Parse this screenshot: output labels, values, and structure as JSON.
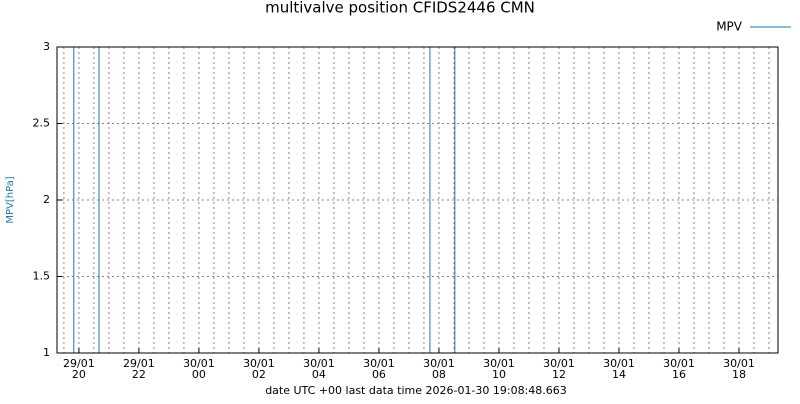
{
  "chart_data": {
    "type": "line",
    "title": "multivalve position CFIDS2446 CMN",
    "xlabel": "date UTC +00 last data time 2026-01-30 19:08:48.663",
    "ylabel": "MPV[hPa]",
    "x": [
      19.83,
      19.83,
      20.67,
      20.67,
      31.7,
      31.7,
      32.53,
      32.53
    ],
    "series": [
      {
        "name": "MPV",
        "color": "#1f77b4",
        "values": [
          1,
          3,
          3,
          1,
          1,
          3,
          3,
          1
        ]
      }
    ],
    "xlim": [
      19.27,
      43.3
    ],
    "xticks": [
      {
        "value": 20,
        "label": [
          "29/01",
          "20"
        ]
      },
      {
        "value": 22,
        "label": [
          "29/01",
          "22"
        ]
      },
      {
        "value": 24,
        "label": [
          "30/01",
          "00"
        ]
      },
      {
        "value": 26,
        "label": [
          "30/01",
          "02"
        ]
      },
      {
        "value": 28,
        "label": [
          "30/01",
          "04"
        ]
      },
      {
        "value": 30,
        "label": [
          "30/01",
          "06"
        ]
      },
      {
        "value": 32,
        "label": [
          "30/01",
          "08"
        ]
      },
      {
        "value": 34,
        "label": [
          "30/01",
          "10"
        ]
      },
      {
        "value": 36,
        "label": [
          "30/01",
          "12"
        ]
      },
      {
        "value": 38,
        "label": [
          "30/01",
          "14"
        ]
      },
      {
        "value": 40,
        "label": [
          "30/01",
          "16"
        ]
      },
      {
        "value": 42,
        "label": [
          "30/01",
          "18"
        ]
      }
    ],
    "ylim": [
      1,
      3
    ],
    "yticks": [
      1,
      1.5,
      2,
      2.5,
      3
    ],
    "grid": true,
    "legend": "top-right"
  }
}
